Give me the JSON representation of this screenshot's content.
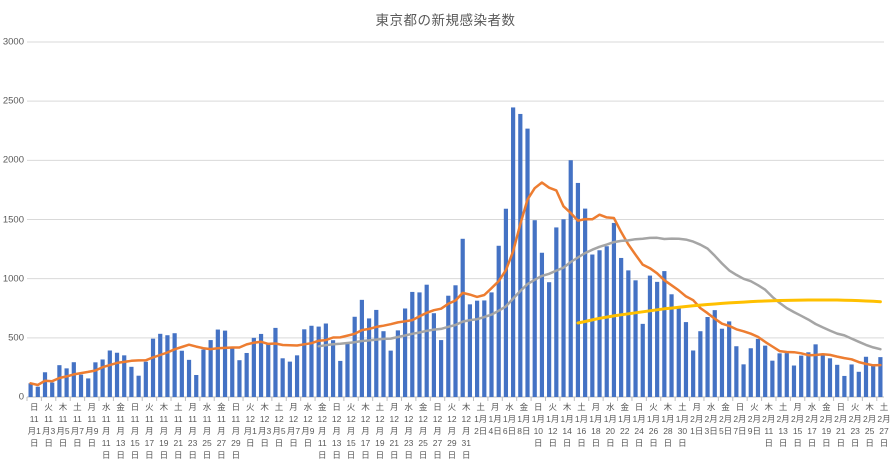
{
  "title": "東京都の新規感染者数",
  "colors": {
    "bar": "#4472C4",
    "ma7_line": "#ED7D31",
    "ma28_line": "#A5A5A5",
    "ma90_line": "#FFC000",
    "gridline": "#D9D9D9",
    "axis": "#BFBFBF",
    "text": "#595959"
  },
  "chart_data": {
    "type": "bar",
    "combo": "bar + 3 line overlays",
    "title": "東京都の新規感染者数",
    "ylim": [
      0,
      3000
    ],
    "yticks": [
      0,
      500,
      1000,
      1500,
      2000,
      2500,
      3000
    ],
    "grid": "horizontal gridlines on, no legend",
    "x_unit": "day",
    "x_first": "11月1日",
    "x_last": "2月27日",
    "n_days": 119,
    "series": [
      {
        "name": "daily-new-cases",
        "type": "bar",
        "color": "#4472C4",
        "values": [
          116,
          87,
          209,
          122,
          269,
          242,
          294,
          189,
          157,
          293,
          317,
          393,
          374,
          352,
          255,
          180,
          298,
          493,
          534,
          522,
          539,
          391,
          314,
          186,
          401,
          481,
          570,
          561,
          418,
          311,
          372,
          500,
          533,
          449,
          584,
          327,
          299,
          352,
          572,
          602,
          595,
          621,
          480,
          305,
          460,
          678,
          821,
          664,
          736,
          556,
          392,
          563,
          748,
          888,
          884,
          949,
          708,
          481,
          856,
          944,
          1337,
          783,
          814,
          816,
          884,
          1278,
          1591,
          2447,
          2392,
          2268,
          1494,
          1219,
          970,
          1433,
          1502,
          2001,
          1809,
          1592,
          1204,
          1240,
          1274,
          1471,
          1175,
          1070,
          986,
          618,
          1026,
          973,
          1064,
          868,
          769,
          633,
          393,
          556,
          676,
          734,
          577,
          639,
          429,
          276,
          412,
          491,
          434,
          307,
          369,
          371,
          266,
          350,
          378,
          445,
          353,
          327,
          272,
          178,
          275,
          213,
          340,
          270,
          337
        ]
      },
      {
        "name": "7day-moving-average",
        "type": "line",
        "color": "#ED7D31",
        "derive": "moving_average",
        "window": 7,
        "start_index": 0,
        "source": "daily-new-cases",
        "peak_approx": 1810
      },
      {
        "name": "28day-moving-average",
        "type": "line",
        "color": "#A5A5A5",
        "derive": "moving_average",
        "window": 28,
        "start_index": 40,
        "source": "daily-new-cases",
        "peak_approx": 1330
      },
      {
        "name": "90day-moving-average",
        "type": "line",
        "color": "#FFC000",
        "points": [
          [
            76,
            625
          ],
          [
            79,
            665
          ],
          [
            82,
            695
          ],
          [
            85,
            720
          ],
          [
            88,
            745
          ],
          [
            91,
            765
          ],
          [
            94,
            782
          ],
          [
            97,
            795
          ],
          [
            100,
            806
          ],
          [
            103,
            814
          ],
          [
            106,
            818
          ],
          [
            109,
            820
          ],
          [
            112,
            820
          ],
          [
            115,
            815
          ],
          [
            118,
            805
          ]
        ]
      }
    ],
    "x_axis": {
      "label_every_n_days": 2,
      "label_weekdays": [
        "日",
        "火",
        "木",
        "土",
        "月",
        "水",
        "金",
        "日",
        "火",
        "木",
        "土",
        "月",
        "水",
        "金",
        "日",
        "火",
        "木",
        "土",
        "月",
        "水",
        "金",
        "日",
        "火",
        "木",
        "土",
        "月",
        "水",
        "金",
        "日",
        "火",
        "木",
        "土",
        "月",
        "水",
        "金",
        "日",
        "火",
        "木",
        "土",
        "月",
        "水",
        "金",
        "日",
        "火",
        "木",
        "土",
        "月",
        "水",
        "金",
        "日",
        "火",
        "木",
        "土",
        "月",
        "水",
        "金",
        "日",
        "火",
        "木",
        "土"
      ],
      "label_dates": [
        "11月1日",
        "11月3日",
        "11月5日",
        "11月7日",
        "11月9日",
        "11月11日",
        "11月13日",
        "11月15日",
        "11月17日",
        "11月19日",
        "11月21日",
        "11月23日",
        "11月25日",
        "11月27日",
        "11月29日",
        "12月1日",
        "12月3日",
        "12月5日",
        "12月7日",
        "12月9日",
        "12月11日",
        "12月13日",
        "12月15日",
        "12月17日",
        "12月19日",
        "12月21日",
        "12月23日",
        "12月25日",
        "12月27日",
        "12月29日",
        "12月31日",
        "1月2日",
        "1月4日",
        "1月6日",
        "1月8日",
        "1月10日",
        "1月12日",
        "1月14日",
        "1月16日",
        "1月18日",
        "1月20日",
        "1月22日",
        "1月24日",
        "1月26日",
        "1月28日",
        "1月30日",
        "2月1日",
        "2月3日",
        "2月5日",
        "2月7日",
        "2月9日",
        "2月11日",
        "2月13日",
        "2月15日",
        "2月17日",
        "2月19日",
        "2月21日",
        "2月23日",
        "2月25日",
        "2月27日"
      ]
    }
  }
}
